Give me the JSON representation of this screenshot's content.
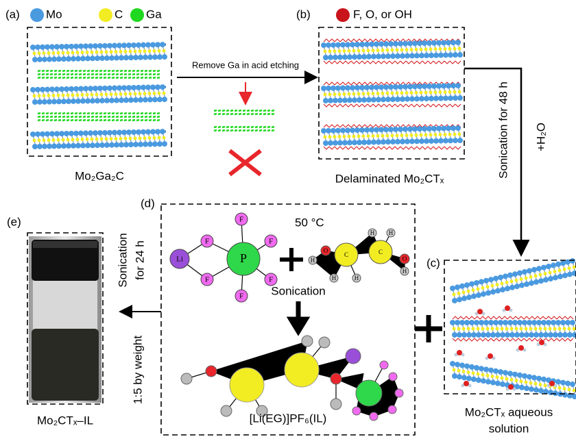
{
  "panel_a": {
    "label": "(a)",
    "legend": [
      "Mo",
      "C",
      "Ga"
    ],
    "caption": "Mo₂Ga₂C"
  },
  "etching_label": "Remove Ga in acid etching",
  "panel_b": {
    "label": "(b)",
    "legend": "F, O, or OH",
    "caption": "Delaminated Mo₂CTₓ"
  },
  "b_to_c": {
    "label": "Sonication for 48 h",
    "water": "+H₂O"
  },
  "panel_c": {
    "label": "(c)",
    "caption": [
      "Mo₂CTₓ aqueous",
      "solution"
    ]
  },
  "panel_d": {
    "label": "(d)",
    "temperature": "50 °C",
    "process": "Sonication",
    "product": "[Li(EG)]PF₆(IL)",
    "lipf6": {
      "li": "Li",
      "center": "P",
      "fluorines": [
        "F",
        "F",
        "F",
        "F",
        "F",
        "F"
      ]
    },
    "eg": [
      "H",
      "O",
      "C",
      "H",
      "H",
      "C",
      "H",
      "H",
      "O",
      "H"
    ]
  },
  "d_to_e": {
    "label": [
      "Sonication",
      "for 24 h"
    ],
    "ratio": "1:5 by weight"
  },
  "panel_e": {
    "label": "(e)",
    "caption": "Mo₂CTₓ–IL"
  }
}
